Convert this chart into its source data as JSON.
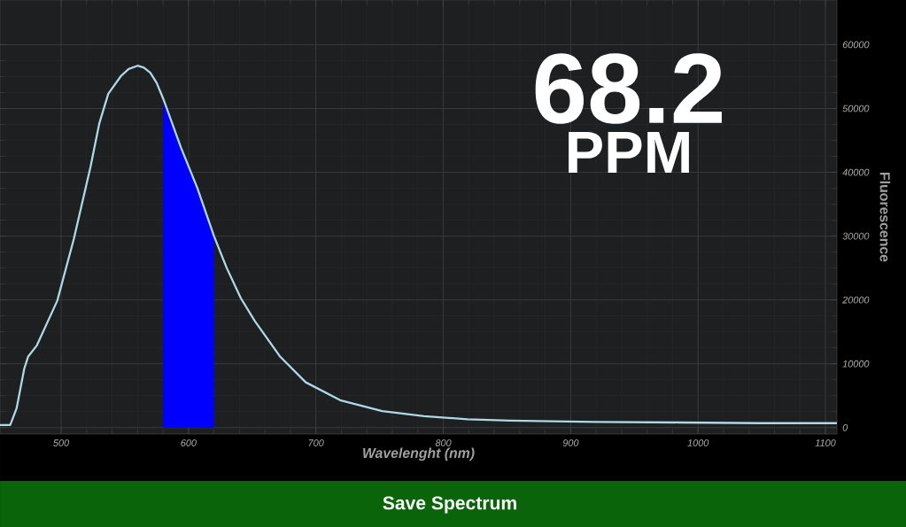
{
  "chart_data": {
    "type": "line",
    "xlabel": "Wavelenght (nm)",
    "ylabel": "Fluorescence",
    "annotations": [
      "68.2",
      "PPM",
      "Save Spectrum"
    ],
    "xlim": [
      452,
      1109
    ],
    "ylim": [
      -1000,
      67000
    ],
    "xticks": [
      500,
      600,
      700,
      800,
      900,
      1000,
      1100
    ],
    "yticks": [
      0,
      10000,
      20000,
      30000,
      40000,
      50000,
      60000
    ],
    "grid": true,
    "series": [
      {
        "type": "area",
        "color": "#0000ff",
        "x": [
          580,
          594,
          607,
          620
        ],
        "values": [
          51600,
          43900,
          37500,
          30000
        ]
      },
      {
        "color": "#add8e6",
        "x": [
          452,
          460,
          465,
          471,
          474,
          481,
          497,
          510,
          523,
          530,
          537,
          547,
          553,
          560,
          565,
          570,
          575,
          580,
          594,
          607,
          620,
          630,
          641,
          652,
          672,
          692,
          719,
          752,
          785,
          819,
          852,
          919,
          985,
          1050,
          1109
        ],
        "values": [
          400,
          400,
          3000,
          9200,
          11100,
          12900,
          19900,
          29600,
          40800,
          47700,
          52300,
          55100,
          56200,
          56700,
          56400,
          55600,
          54000,
          51600,
          43900,
          37500,
          30000,
          25000,
          20300,
          16700,
          11100,
          7100,
          4300,
          2600,
          1800,
          1300,
          1100,
          900,
          800,
          700,
          700
        ]
      }
    ]
  }
}
